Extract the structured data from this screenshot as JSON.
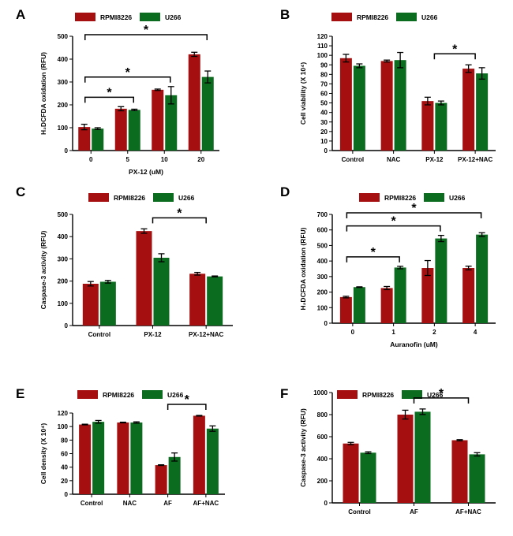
{
  "colors": {
    "series1": "#a50f0f",
    "series2": "#0b6b1e",
    "axis": "#000000"
  },
  "chart_data": [
    {
      "panel": "A",
      "type": "bar",
      "categories": [
        "0",
        "5",
        "10",
        "20"
      ],
      "series": [
        {
          "name": "RPMI8226",
          "values": [
            103,
            183,
            266,
            421
          ],
          "errors": [
            12,
            9,
            3,
            9
          ]
        },
        {
          "name": "U266",
          "values": [
            96,
            178,
            242,
            322
          ],
          "errors": [
            4,
            3,
            38,
            26
          ]
        }
      ],
      "xlabel": "PX-12 (uM)",
      "ylabel": "H₂DCFDA oxidation (RFU)",
      "ylim": [
        0,
        500
      ],
      "yticks": [
        0,
        100,
        200,
        300,
        400,
        500
      ],
      "legend": "top",
      "grid": false,
      "annotations": [
        {
          "text": "*",
          "from": 0,
          "to": 1
        },
        {
          "text": "*",
          "from": 0,
          "to": 2
        },
        {
          "text": "*",
          "from": 0,
          "to": 3
        }
      ]
    },
    {
      "panel": "B",
      "type": "bar",
      "categories": [
        "Control",
        "NAC",
        "PX-12",
        "PX-12+NAC"
      ],
      "series": [
        {
          "name": "RPMI8226",
          "values": [
            97,
            94,
            52,
            86
          ],
          "errors": [
            4,
            1,
            4,
            4
          ]
        },
        {
          "name": "U266",
          "values": [
            89,
            95,
            50,
            81
          ],
          "errors": [
            2,
            8,
            2,
            6
          ]
        }
      ],
      "xlabel": "",
      "ylabel": "Cell viability (X 10⁴)",
      "ylim": [
        0,
        120
      ],
      "yticks": [
        0,
        10,
        20,
        30,
        40,
        50,
        60,
        70,
        80,
        90,
        100,
        110,
        120
      ],
      "legend": "top",
      "grid": false,
      "annotations": [
        {
          "text": "*",
          "from": 2,
          "to": 3
        }
      ]
    },
    {
      "panel": "C",
      "type": "bar",
      "categories": [
        "Control",
        "PX-12",
        "PX-12+NAC"
      ],
      "series": [
        {
          "name": "RPMI8226",
          "values": [
            188,
            425,
            233
          ],
          "errors": [
            10,
            10,
            6
          ]
        },
        {
          "name": "U266",
          "values": [
            197,
            305,
            221
          ],
          "errors": [
            6,
            18,
            2
          ]
        }
      ],
      "xlabel": "",
      "ylabel": "Caspase-3 activity (RFU)",
      "ylim": [
        0,
        500
      ],
      "yticks": [
        0,
        100,
        200,
        300,
        400,
        500
      ],
      "legend": "top",
      "grid": false,
      "annotations": [
        {
          "text": "*",
          "from": 1,
          "to": 2
        }
      ]
    },
    {
      "panel": "D",
      "type": "bar",
      "categories": [
        "0",
        "1",
        "2",
        "4"
      ],
      "series": [
        {
          "name": "RPMI8226",
          "values": [
            168,
            226,
            355,
            355
          ],
          "errors": [
            5,
            10,
            48,
            12
          ]
        },
        {
          "name": "U266",
          "values": [
            232,
            358,
            545,
            570
          ],
          "errors": [
            2,
            8,
            20,
            12
          ]
        }
      ],
      "xlabel": "Auranofin (uM)",
      "ylabel": "H₂DCFDA oxidation (RFU)",
      "ylim": [
        0,
        700
      ],
      "yticks": [
        0,
        100,
        200,
        300,
        400,
        500,
        600,
        700
      ],
      "legend": "top",
      "grid": false,
      "annotations": [
        {
          "text": "*",
          "from": 0,
          "to": 1
        },
        {
          "text": "*",
          "from": 0,
          "to": 2
        },
        {
          "text": "*",
          "from": 0,
          "to": 3
        }
      ]
    },
    {
      "panel": "E",
      "type": "bar",
      "categories": [
        "Control",
        "NAC",
        "AF",
        "AF+NAC"
      ],
      "series": [
        {
          "name": "RPMI8226",
          "values": [
            103,
            106,
            43,
            116
          ],
          "errors": [
            0.5,
            0.5,
            0.5,
            0.5
          ]
        },
        {
          "name": "U266",
          "values": [
            107,
            106,
            55,
            97
          ],
          "errors": [
            2,
            1,
            6,
            4
          ]
        }
      ],
      "xlabel": "",
      "ylabel": "Cell density (X 10⁴)",
      "ylim": [
        0,
        120
      ],
      "yticks": [
        0,
        20,
        40,
        60,
        80,
        100,
        120
      ],
      "legend": "top",
      "grid": false,
      "annotations": [
        {
          "text": "*",
          "from": 2,
          "to": 3
        }
      ]
    },
    {
      "panel": "F",
      "type": "bar",
      "categories": [
        "Control",
        "AF",
        "AF+NAC"
      ],
      "series": [
        {
          "name": "RPMI8226",
          "values": [
            538,
            800,
            568
          ],
          "errors": [
            10,
            40,
            5
          ]
        },
        {
          "name": "U266",
          "values": [
            455,
            826,
            440
          ],
          "errors": [
            8,
            25,
            15
          ]
        }
      ],
      "xlabel": "",
      "ylabel": "Caspase-3 activity (RFU)",
      "ylim": [
        0,
        1000
      ],
      "yticks": [
        0,
        200,
        400,
        600,
        800,
        1000
      ],
      "legend": "top",
      "grid": false,
      "annotations": [
        {
          "text": "*",
          "from": 1,
          "to": 2
        }
      ]
    }
  ]
}
